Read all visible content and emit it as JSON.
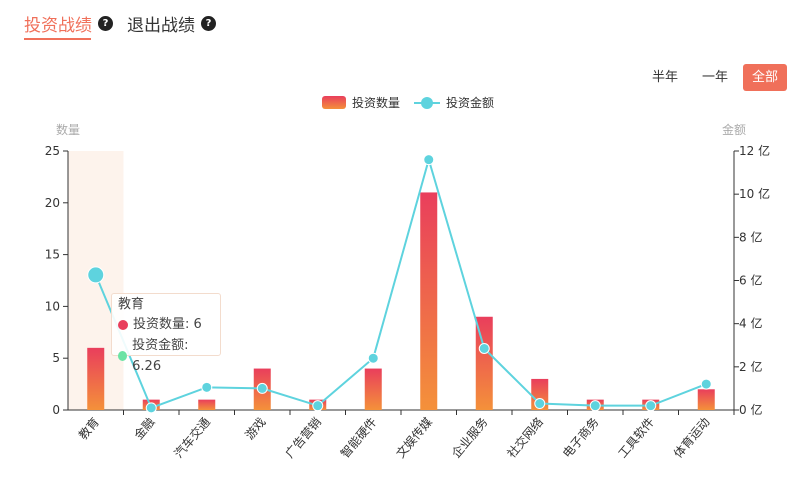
{
  "tabs": [
    {
      "label": "投资战绩",
      "active": true
    },
    {
      "label": "退出战绩",
      "active": false
    }
  ],
  "help_glyph": "?",
  "period_buttons": [
    {
      "label": "半年",
      "active": false
    },
    {
      "label": "一年",
      "active": false
    },
    {
      "label": "全部",
      "active": true
    }
  ],
  "tooltip": {
    "title": "教育",
    "rows": [
      {
        "label": "投资数量: 6",
        "color": "#e93e5c"
      },
      {
        "label": "投资金额: 6.26",
        "color": "#6be3a4"
      }
    ]
  },
  "colors": {
    "accent": "#f0705a",
    "bar_top": "#e93e5c",
    "bar_bottom": "#f4913a",
    "line": "#5ed3de",
    "highlight": "#fdf3ec"
  },
  "chart_data": {
    "type": "bar",
    "categories": [
      "教育",
      "金融",
      "汽车交通",
      "游戏",
      "广告营销",
      "智能硬件",
      "文娱传媒",
      "企业服务",
      "社交网络",
      "电子商务",
      "工具软件",
      "体育运动"
    ],
    "series": [
      {
        "name": "投资数量",
        "type": "bar",
        "axis": "left",
        "values": [
          6,
          1,
          1,
          4,
          1,
          4,
          21,
          9,
          3,
          1,
          1,
          2
        ]
      },
      {
        "name": "投资金额",
        "type": "line",
        "axis": "right",
        "values": [
          6.26,
          0.1,
          1.05,
          1.0,
          0.2,
          2.4,
          11.6,
          2.85,
          0.3,
          0.2,
          0.2,
          1.2
        ]
      }
    ],
    "left_axis": {
      "label": "数量",
      "ylim": [
        0,
        25
      ],
      "ticks": [
        "0",
        "5",
        "10",
        "15",
        "20",
        "25"
      ]
    },
    "right_axis": {
      "label": "金额",
      "ylim": [
        0,
        12
      ],
      "ticks": [
        "0 亿",
        "2 亿",
        "4 亿",
        "6 亿",
        "8 亿",
        "10 亿",
        "12 亿"
      ]
    },
    "legend": [
      "投资数量",
      "投资金额"
    ],
    "legend_position": "top-center",
    "highlighted_category": "教育"
  }
}
